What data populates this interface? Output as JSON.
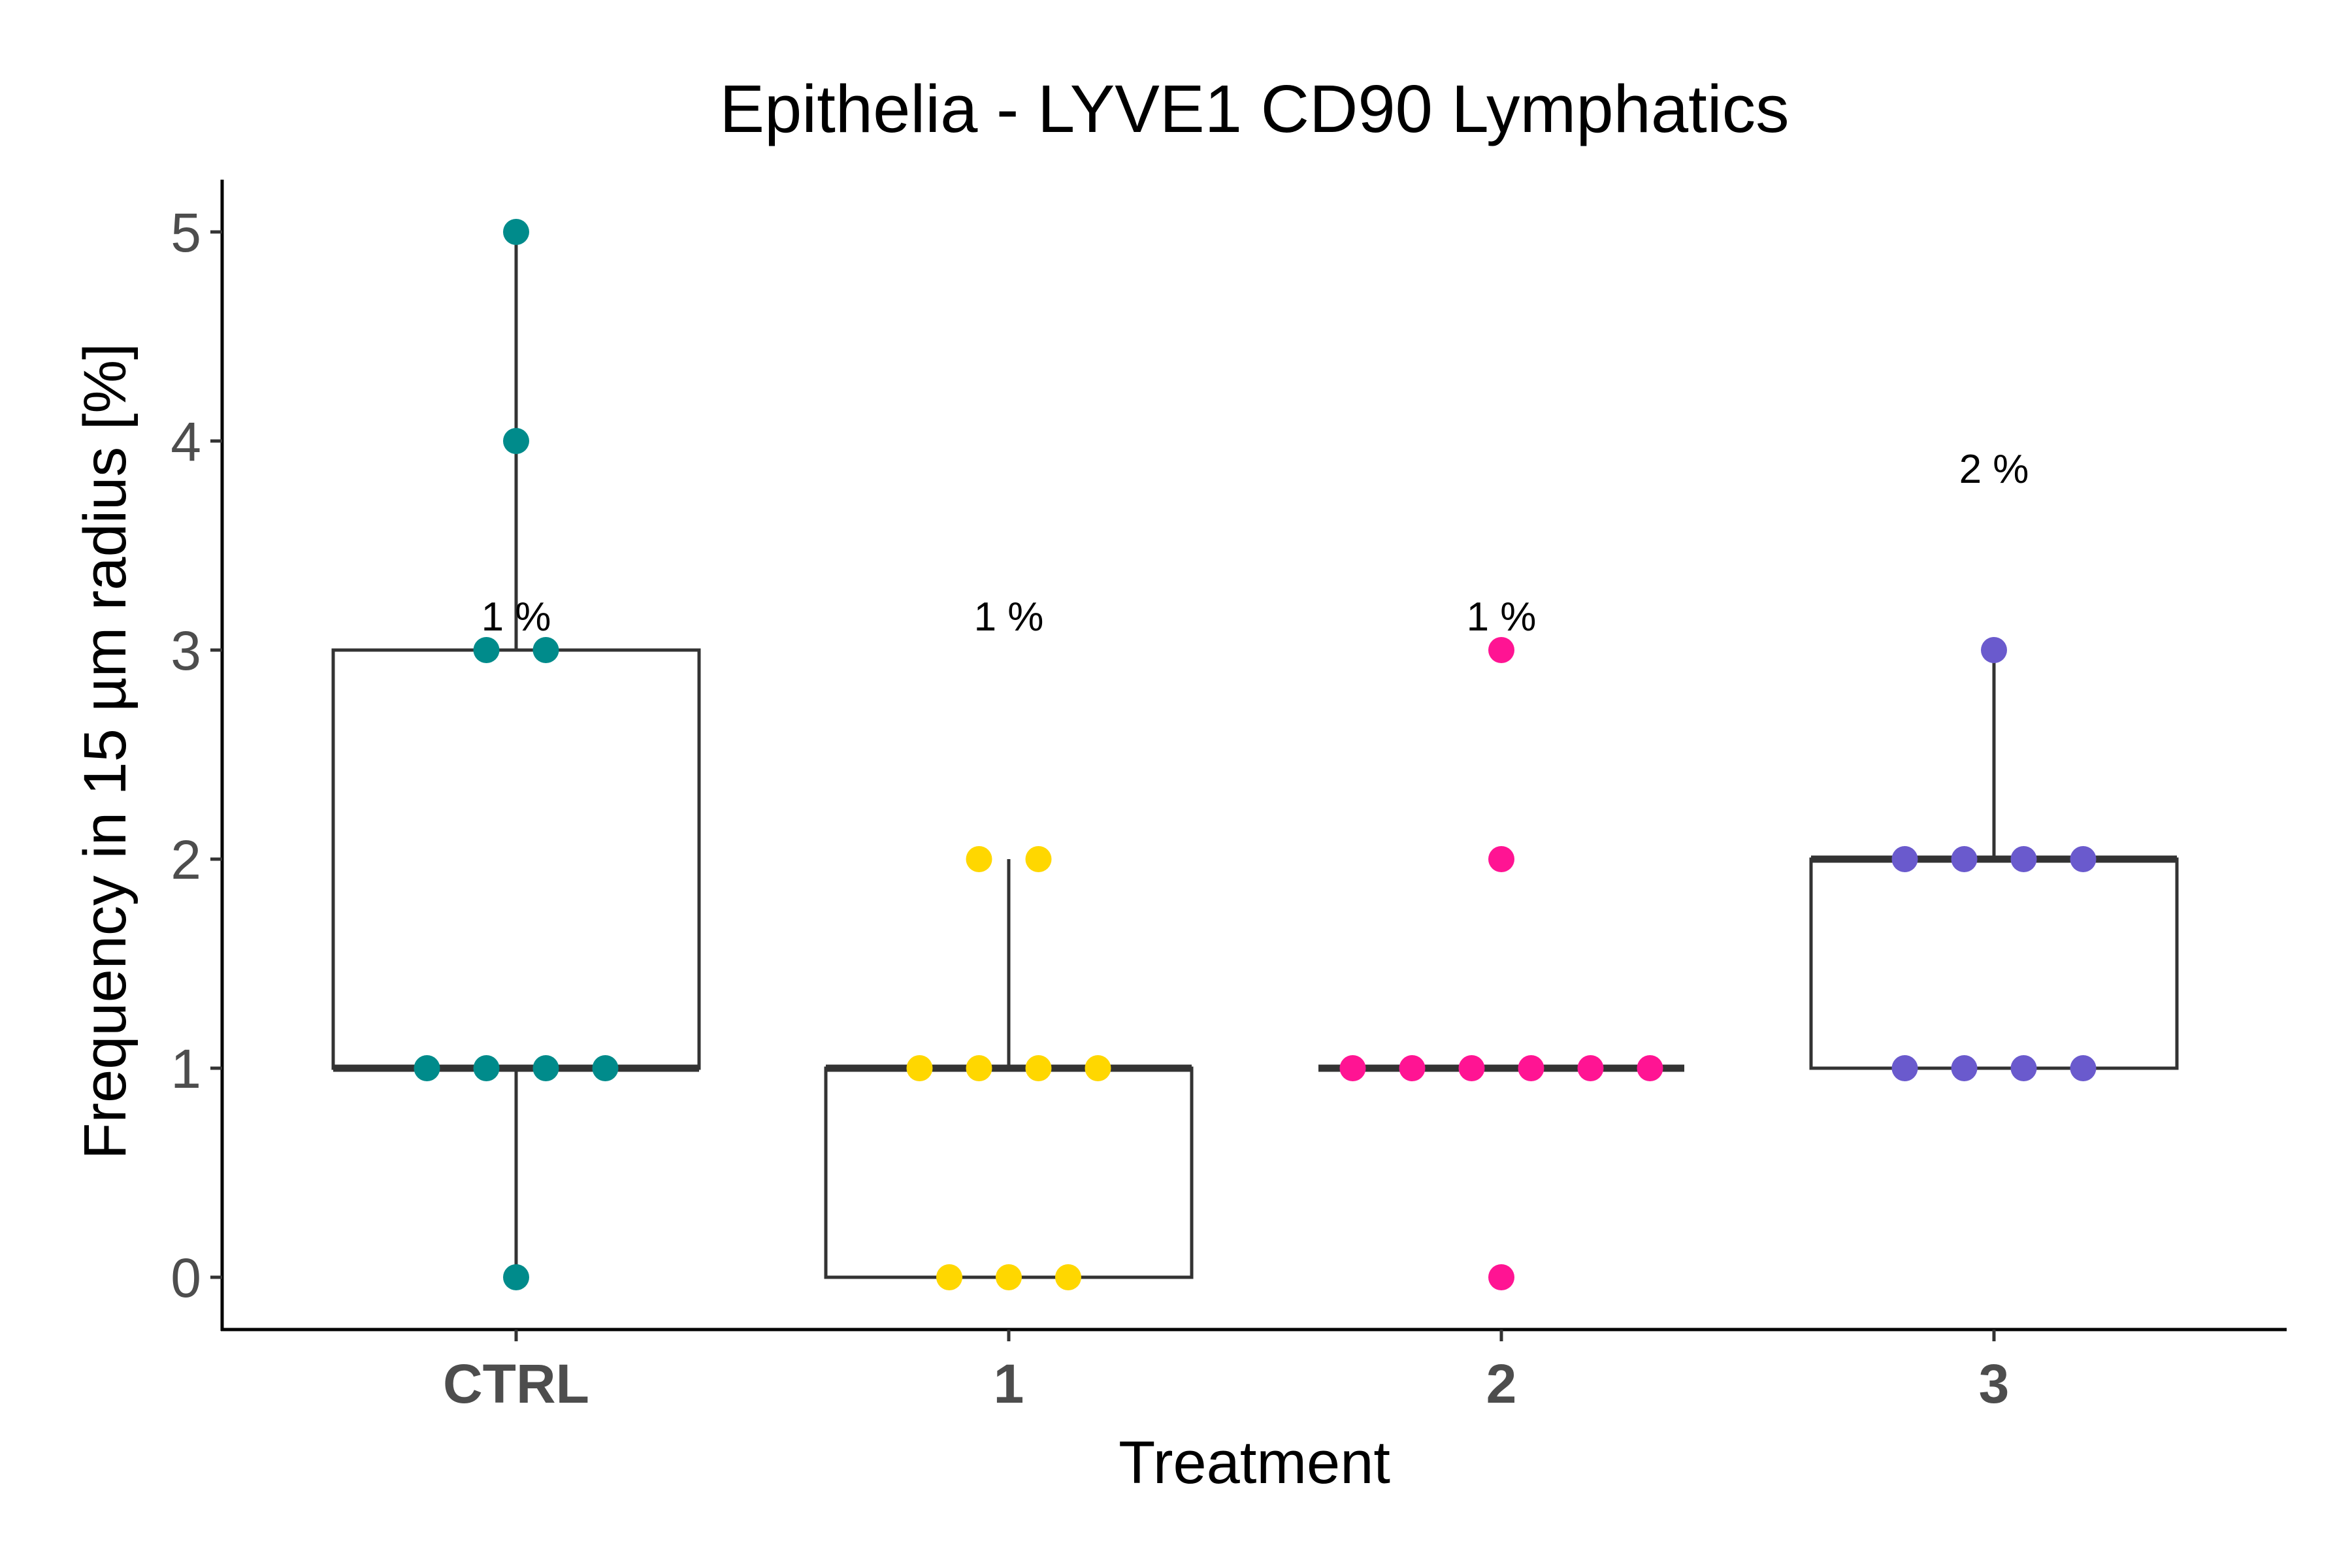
{
  "chart_data": {
    "type": "box",
    "title": "Epithelia - LYVE1 CD90 Lymphatics",
    "xlabel": "Treatment",
    "ylabel": "Frequency in 15 µm radius [%]",
    "ylim": [
      -0.25,
      5.25
    ],
    "y_ticks": [
      "0",
      "1",
      "2",
      "3",
      "4",
      "5"
    ],
    "grid": false,
    "legend": "none",
    "categories": [
      "CTRL",
      "1",
      "2",
      "3"
    ],
    "groups": [
      {
        "name": "CTRL",
        "color": "#008b8b",
        "annotation": "1 %",
        "box": {
          "min": 0,
          "q1": 1,
          "median": 1,
          "q3": 3,
          "max": 5
        },
        "points": [
          0,
          1,
          1,
          1,
          1,
          3,
          3,
          4,
          5
        ]
      },
      {
        "name": "1",
        "color": "#ffd700",
        "annotation": "1 %",
        "box": {
          "min": 0,
          "q1": 0,
          "median": 1,
          "q3": 1,
          "max": 2
        },
        "points": [
          0,
          0,
          0,
          1,
          1,
          1,
          1,
          2,
          2
        ]
      },
      {
        "name": "2",
        "color": "#ff1493",
        "annotation": "1 %",
        "box": {
          "min": 1,
          "q1": 1,
          "median": 1,
          "q3": 1,
          "max": 1
        },
        "points": [
          0,
          1,
          1,
          1,
          1,
          1,
          1,
          2,
          3
        ]
      },
      {
        "name": "3",
        "color": "#6a5acd",
        "annotation": "2 %",
        "box": {
          "min": 1,
          "q1": 1,
          "median": 2,
          "q3": 2,
          "max": 3
        },
        "points": [
          1,
          1,
          1,
          1,
          2,
          2,
          2,
          2,
          3
        ]
      }
    ]
  }
}
